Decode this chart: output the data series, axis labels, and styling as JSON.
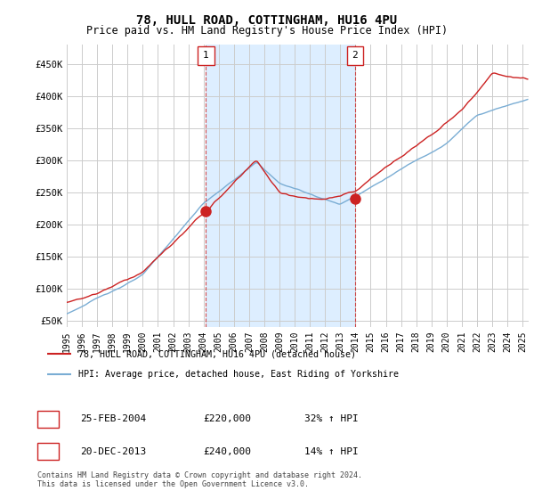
{
  "title": "78, HULL ROAD, COTTINGHAM, HU16 4PU",
  "subtitle": "Price paid vs. HM Land Registry's House Price Index (HPI)",
  "ylabel_ticks": [
    "£50K",
    "£100K",
    "£150K",
    "£200K",
    "£250K",
    "£300K",
    "£350K",
    "£400K",
    "£450K"
  ],
  "ytick_vals": [
    50000,
    100000,
    150000,
    200000,
    250000,
    300000,
    350000,
    400000,
    450000
  ],
  "ylim": [
    40000,
    480000
  ],
  "xlim_start": 1995.0,
  "xlim_end": 2025.4,
  "background_color": "#ffffff",
  "grid_color": "#cccccc",
  "hpi_color": "#7aadd4",
  "price_color": "#cc2222",
  "shade_color": "#ddeeff",
  "marker1_date": 2004.15,
  "marker1_price": 220000,
  "marker2_date": 2013.97,
  "marker2_price": 240000,
  "vline1_x": 2004.15,
  "vline2_x": 2013.97,
  "legend_line1": "78, HULL ROAD, COTTINGHAM, HU16 4PU (detached house)",
  "legend_line2": "HPI: Average price, detached house, East Riding of Yorkshire",
  "table_row1_num": "1",
  "table_row1_date": "25-FEB-2004",
  "table_row1_price": "£220,000",
  "table_row1_hpi": "32% ↑ HPI",
  "table_row2_num": "2",
  "table_row2_date": "20-DEC-2013",
  "table_row2_price": "£240,000",
  "table_row2_hpi": "14% ↑ HPI",
  "footnote1": "Contains HM Land Registry data © Crown copyright and database right 2024.",
  "footnote2": "This data is licensed under the Open Government Licence v3.0."
}
